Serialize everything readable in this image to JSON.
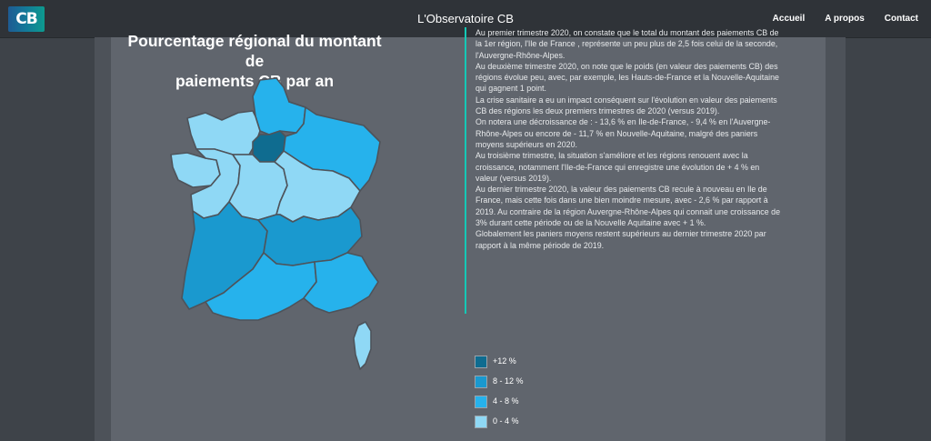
{
  "header": {
    "logo_text": "CB",
    "site_title": "L'Observatoire CB",
    "nav": [
      {
        "label": "Accueil"
      },
      {
        "label": "A propos"
      },
      {
        "label": "Contact"
      }
    ]
  },
  "map": {
    "title_line1": "Pourcentage régional du montant de",
    "title_line2": "paiements CB par an"
  },
  "text": {
    "paragraphs": [
      "Au premier trimestre 2020, on constate que le total du montant des paiements CB de la 1er région, l'Ile de France , représente un peu plus de 2,5 fois celui de la seconde, l'Auvergne-Rhône-Alpes.",
      "Au deuxième trimestre 2020, on note que le poids (en valeur des paiements CB) des régions évolue peu, avec, par exemple, les Hauts-de-France et la Nouvelle-Aquitaine qui gagnent 1 point.",
      "La crise sanitaire a eu un impact conséquent sur l'évolution en valeur des paiements CB des régions les deux premiers trimestres de 2020 (versus 2019).",
      "On notera une décroissance de :  - 13,6 % en Ile-de-France,  - 9,4 % en l'Auvergne-Rhône-Alpes ou encore de  - 11,7 % en Nouvelle-Aquitaine, malgré des paniers moyens supérieurs en 2020.",
      "Au troisième trimestre, la situation s'améliore et les régions renouent avec la croissance, notamment l'Ile-de-France qui enregistre une évolution de + 4 % en valeur (versus 2019).",
      "Au dernier trimestre 2020, la valeur des paiements CB recule à nouveau en Ile de France, mais cette fois dans une bien moindre mesure, avec - 2,6 % par rapport à 2019. Au contraire de la région Auvergne-Rhône-Alpes qui connait une croissance de 3% durant cette période  ou de la Nouvelle Aquitaine avec + 1 %.",
      "Globalement les paniers moyens restent supérieurs au dernier trimestre 2020 par rapport à la même période de 2019."
    ]
  },
  "legend": [
    {
      "label": "+12 %",
      "color": "#0f6c90"
    },
    {
      "label": "8 - 12 %",
      "color": "#1a99cf"
    },
    {
      "label": "4 - 8 %",
      "color": "#26b2ec"
    },
    {
      "label": "0 - 4 %",
      "color": "#8fd8f5"
    }
  ]
}
